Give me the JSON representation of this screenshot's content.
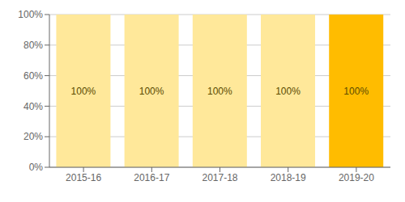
{
  "chart_data": {
    "type": "bar",
    "categories": [
      "2015-16",
      "2016-17",
      "2017-18",
      "2018-19",
      "2019-20"
    ],
    "values": [
      100,
      100,
      100,
      100,
      100
    ],
    "value_labels": [
      "100%",
      "100%",
      "100%",
      "100%",
      "100%"
    ],
    "data_labels": true,
    "colors": [
      "#FFE89A",
      "#FFE89A",
      "#FFE89A",
      "#FFE89A",
      "#FFBC00"
    ],
    "ylim": [
      0,
      100
    ],
    "yticks": [
      {
        "value": 0,
        "label": "0%"
      },
      {
        "value": 20,
        "label": "20%"
      },
      {
        "value": 40,
        "label": "40%"
      },
      {
        "value": 60,
        "label": "60%"
      },
      {
        "value": 80,
        "label": "80%"
      },
      {
        "value": 100,
        "label": "100%"
      }
    ],
    "grid": true
  }
}
